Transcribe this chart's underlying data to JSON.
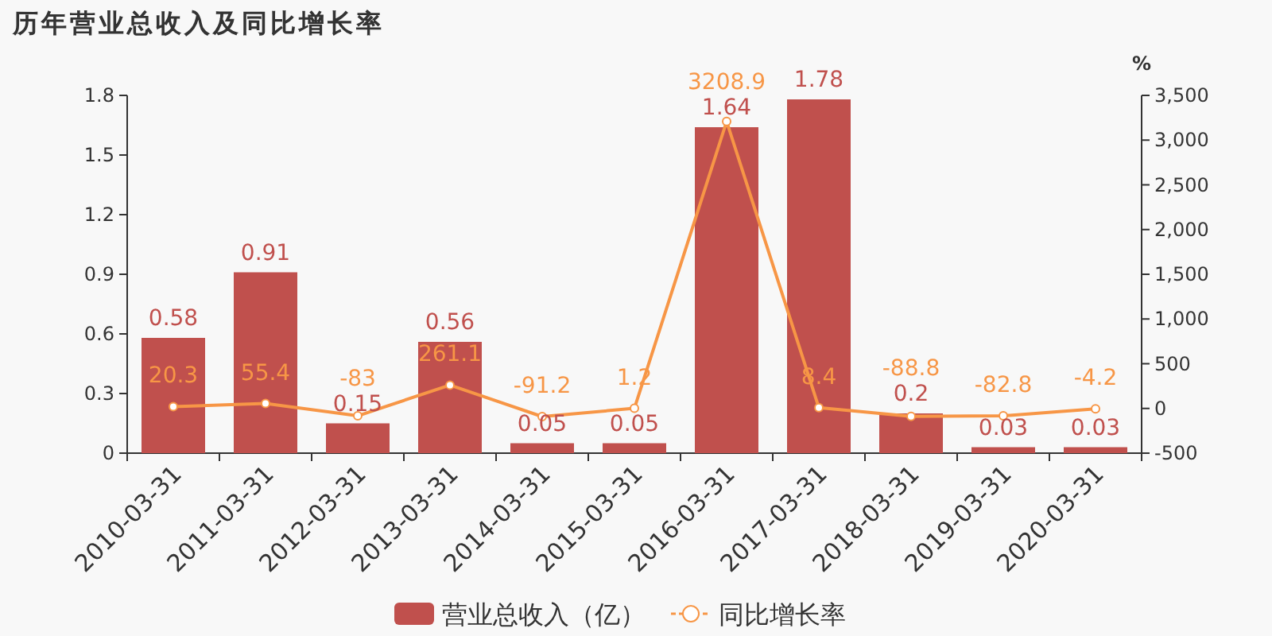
{
  "chart_data": {
    "type": "bar",
    "title": "历年营业总收入及同比增长率",
    "categories": [
      "2010-03-31",
      "2011-03-31",
      "2012-03-31",
      "2013-03-31",
      "2014-03-31",
      "2015-03-31",
      "2016-03-31",
      "2017-03-31",
      "2018-03-31",
      "2019-03-31",
      "2020-03-31"
    ],
    "series": [
      {
        "name": "营业总收入（亿）",
        "color": "#c0504d",
        "values": [
          0.58,
          0.91,
          0.15,
          0.56,
          0.05,
          0.05,
          1.64,
          1.78,
          0.2,
          0.03,
          0.03
        ]
      },
      {
        "name": "同比增长率",
        "type": "line",
        "axis": "y2",
        "color": "#f79646",
        "values": [
          20.3,
          55.4,
          -83,
          261.1,
          -91.2,
          1.2,
          3208.9,
          8.4,
          -88.8,
          -82.8,
          -4.2
        ]
      }
    ],
    "ylim": [
      0,
      1.8
    ],
    "yticks": [
      0,
      0.3,
      0.6,
      0.9,
      1.2,
      1.5,
      1.8
    ],
    "y2label": "%",
    "y2lim": [
      -500,
      3500
    ],
    "y2ticks": [
      {
        "value": -500,
        "label": "-500"
      },
      0,
      500,
      {
        "value": 1000,
        "label": "1,000"
      },
      {
        "value": 1500,
        "label": "1,500"
      },
      {
        "value": 2000,
        "label": "2,000"
      },
      {
        "value": 2500,
        "label": "2,500"
      },
      {
        "value": 3000,
        "label": "3,000"
      },
      {
        "value": 3500,
        "label": "3,500"
      }
    ],
    "data_labels": true,
    "legend": "bottom",
    "marker": "circle"
  }
}
